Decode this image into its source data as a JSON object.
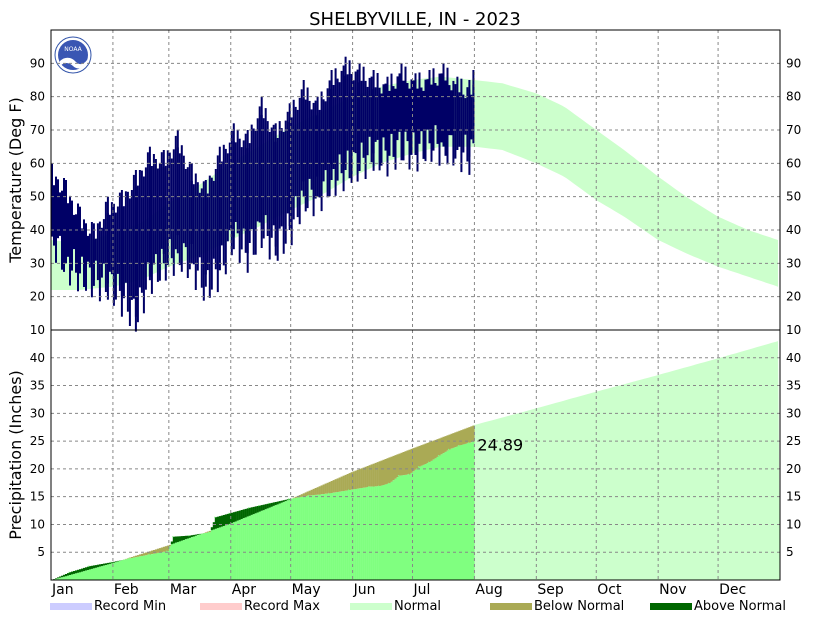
{
  "chart_data": {
    "type": "area",
    "title": "SHELBYVILLE, IN - 2023",
    "months": [
      "Jan",
      "Feb",
      "Mar",
      "Apr",
      "May",
      "Jun",
      "Jul",
      "Aug",
      "Sep",
      "Oct",
      "Nov",
      "Dec"
    ],
    "grid": true,
    "legend_position": "bottom",
    "legend": [
      {
        "label": "Record Min",
        "color": "#ccccff"
      },
      {
        "label": "Record Max",
        "color": "#ffcccc"
      },
      {
        "label": "Normal",
        "color": "#ccffcc"
      },
      {
        "label": "Below Normal",
        "color": "#aaaa55"
      },
      {
        "label": "Above Normal",
        "color": "#006600"
      }
    ],
    "colors": {
      "observed_temp": "#000066",
      "normal_band": "#ccffcc",
      "observed_precip": "#80ff80",
      "below_normal": "#aaaa55",
      "above_normal": "#006600"
    },
    "temperature": {
      "ylabel": "Temperature (Deg F)",
      "ylim": [
        10,
        100
      ],
      "yticks": [
        10,
        20,
        30,
        40,
        50,
        60,
        70,
        80,
        90
      ],
      "normal_band": {
        "day": [
          1,
          15,
          32,
          46,
          60,
          74,
          91,
          105,
          121,
          135,
          152,
          166,
          182,
          196,
          213,
          227,
          244,
          258,
          274,
          288,
          305,
          319,
          335,
          350,
          365
        ],
        "low": [
          22,
          22,
          23,
          25,
          29,
          32,
          37,
          41,
          46,
          50,
          56,
          60,
          63,
          65,
          65,
          64,
          60,
          56,
          49,
          44,
          37,
          33,
          29,
          26,
          23
        ],
        "high": [
          37,
          36,
          39,
          42,
          48,
          53,
          60,
          65,
          71,
          75,
          80,
          83,
          85,
          86,
          85,
          84,
          81,
          77,
          70,
          64,
          56,
          50,
          44,
          40,
          37
        ]
      },
      "observed_daily": {
        "day": [
          1,
          8,
          15,
          22,
          29,
          36,
          43,
          50,
          57,
          64,
          71,
          78,
          85,
          92,
          99,
          106,
          113,
          120,
          127,
          134,
          141,
          148,
          155,
          162,
          169,
          176,
          183,
          190,
          197,
          204,
          210,
          212
        ],
        "low": [
          38,
          30,
          27,
          25,
          24,
          20,
          14,
          26,
          30,
          33,
          30,
          23,
          28,
          38,
          33,
          40,
          35,
          40,
          50,
          50,
          55,
          58,
          60,
          63,
          62,
          65,
          63,
          66,
          65,
          64,
          62,
          66
        ],
        "high": [
          60,
          55,
          47,
          42,
          50,
          52,
          58,
          65,
          64,
          70,
          60,
          55,
          65,
          72,
          70,
          80,
          72,
          78,
          85,
          80,
          88,
          92,
          90,
          88,
          86,
          90,
          87,
          88,
          90,
          86,
          85,
          88
        ]
      }
    },
    "precipitation": {
      "ylabel": "Precipitation (Inches)",
      "ylim": [
        0,
        45
      ],
      "yticks": [
        5,
        10,
        15,
        20,
        25,
        30,
        35,
        40
      ],
      "annotation": "24.89",
      "normal_cumulative": {
        "day": [
          1,
          31,
          59,
          90,
          120,
          151,
          181,
          212,
          243,
          273,
          304,
          334,
          365
        ],
        "value": [
          0,
          3,
          6.2,
          10.1,
          14.5,
          19.4,
          23.6,
          27.8,
          30.8,
          33.8,
          36.8,
          39.8,
          43
        ]
      },
      "observed_cumulative": {
        "day": [
          1,
          10,
          20,
          31,
          40,
          50,
          59,
          62,
          70,
          80,
          83,
          90,
          100,
          105,
          110,
          120,
          130,
          140,
          150,
          160,
          165,
          170,
          175,
          180,
          185,
          190,
          195,
          200,
          205,
          210,
          212
        ],
        "value": [
          0,
          1.4,
          2.5,
          3.2,
          3.9,
          4.6,
          5.2,
          7.8,
          8.0,
          8.6,
          11.3,
          12.0,
          13.0,
          13.4,
          13.8,
          14.6,
          15.2,
          15.6,
          16.2,
          16.8,
          16.9,
          17.4,
          18.8,
          19.0,
          20.4,
          21.2,
          22.4,
          23.5,
          24.2,
          24.7,
          24.89
        ]
      }
    }
  }
}
